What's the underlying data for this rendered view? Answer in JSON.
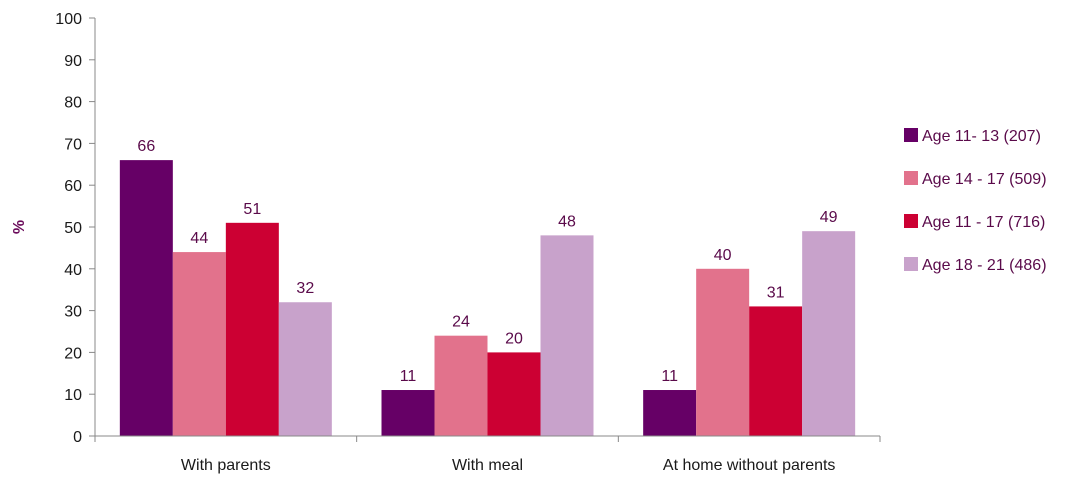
{
  "chart_data": {
    "type": "bar",
    "title": "",
    "xlabel": "",
    "ylabel": "%",
    "ylim": [
      0,
      100
    ],
    "yticks": [
      0,
      10,
      20,
      30,
      40,
      50,
      60,
      70,
      80,
      90,
      100
    ],
    "grid": false,
    "legend_position": "right",
    "categories": [
      "With parents",
      "With meal",
      "At home without parents"
    ],
    "series": [
      {
        "name": "Age 11- 13 (207)",
        "color": "#660066",
        "values": [
          66,
          11,
          11
        ]
      },
      {
        "name": "Age 14 - 17 (509)",
        "color": "#E2728C",
        "values": [
          44,
          24,
          40
        ]
      },
      {
        "name": "Age 11 - 17 (716)",
        "color": "#CC0033",
        "values": [
          51,
          20,
          31
        ]
      },
      {
        "name": "Age 18 - 21 (486)",
        "color": "#C8A2CB",
        "values": [
          32,
          48,
          49
        ]
      }
    ]
  }
}
